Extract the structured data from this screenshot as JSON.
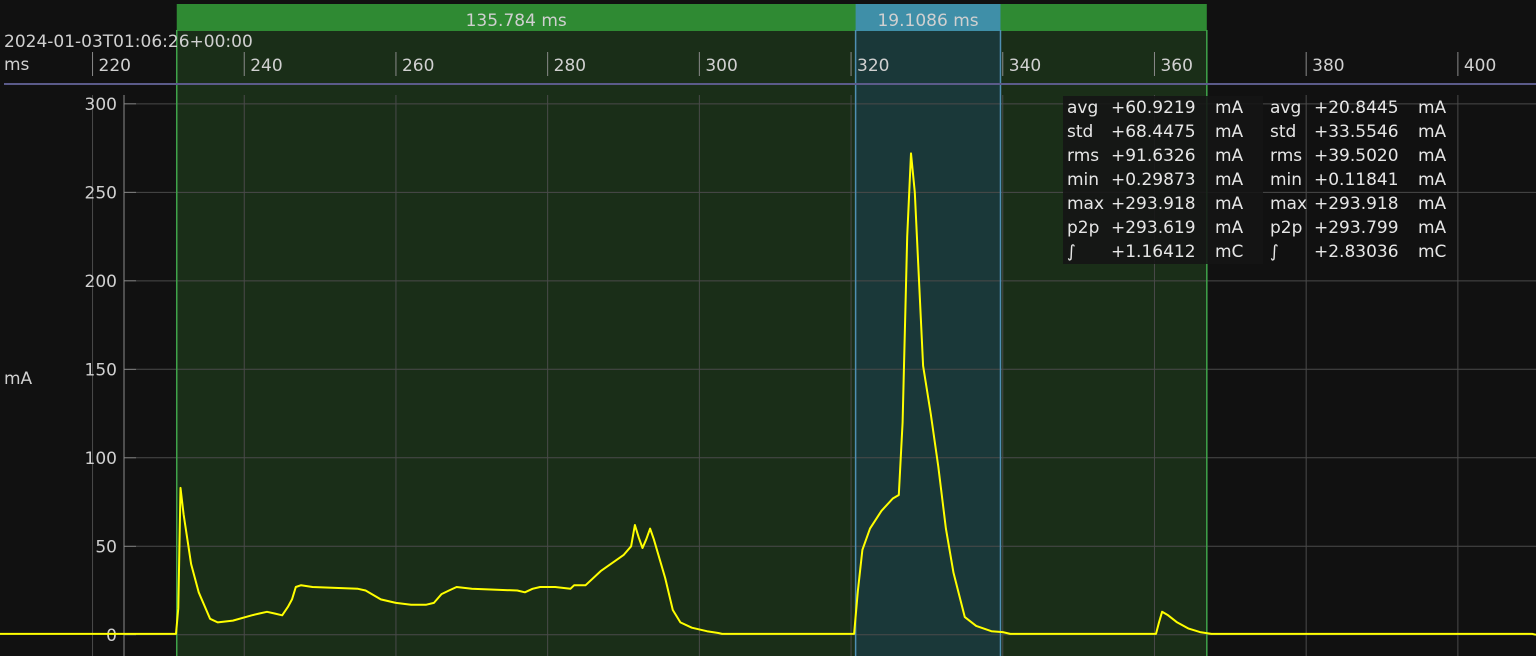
{
  "header": {
    "timestamp": "2024-01-03T01:06:26+00:00",
    "x_unit_label": "ms",
    "y_unit_label": "mA"
  },
  "colors": {
    "background": "#111111",
    "trace": "#ffff00",
    "dual_marker": "#3fa34a",
    "single_marker": "#4f8fb3",
    "grid": "#4a4a4a"
  },
  "markers": {
    "dual": {
      "t1": 231.1,
      "t2": 366.9,
      "label": "135.784 ms"
    },
    "single_window": {
      "t1": 320.6,
      "t2": 339.7,
      "label": "19.1086 ms"
    }
  },
  "stats": {
    "dual": [
      {
        "name": "avg",
        "value": "+60.9219",
        "unit": "mA"
      },
      {
        "name": "std",
        "value": "+68.4475",
        "unit": "mA"
      },
      {
        "name": "rms",
        "value": "+91.6326",
        "unit": "mA"
      },
      {
        "name": "min",
        "value": "+0.29873",
        "unit": "mA"
      },
      {
        "name": "max",
        "value": "+293.918",
        "unit": "mA"
      },
      {
        "name": "p2p",
        "value": "+293.619",
        "unit": "mA"
      },
      {
        "name": "∫",
        "value": "+1.16412",
        "unit": "mC"
      }
    ],
    "single": [
      {
        "name": "avg",
        "value": "+20.8445",
        "unit": "mA"
      },
      {
        "name": "std",
        "value": "+33.5546",
        "unit": "mA"
      },
      {
        "name": "rms",
        "value": "+39.5020",
        "unit": "mA"
      },
      {
        "name": "min",
        "value": "+0.11841",
        "unit": "mA"
      },
      {
        "name": "max",
        "value": "+293.918",
        "unit": "mA"
      },
      {
        "name": "p2p",
        "value": "+293.799",
        "unit": "mA"
      },
      {
        "name": "∫",
        "value": "+2.83036",
        "unit": "mC"
      }
    ]
  },
  "chart_data": {
    "type": "line",
    "title": "",
    "xlabel": "ms",
    "ylabel": "mA",
    "xlim": [
      207.8,
      410.3
    ],
    "ylim": [
      -12,
      305
    ],
    "x_ticks": [
      220,
      240,
      260,
      280,
      300,
      320,
      340,
      360,
      380,
      400
    ],
    "y_ticks": [
      0,
      50,
      100,
      150,
      200,
      250,
      300
    ],
    "grid": true,
    "series": [
      {
        "name": "",
        "points": [
          [
            207.8,
            0.5
          ],
          [
            231.0,
            0.5
          ],
          [
            231.3,
            15
          ],
          [
            231.6,
            83
          ],
          [
            232.0,
            68
          ],
          [
            233.0,
            40
          ],
          [
            234.0,
            24
          ],
          [
            235.0,
            14
          ],
          [
            235.5,
            9
          ],
          [
            236.5,
            7
          ],
          [
            238.5,
            8
          ],
          [
            241.0,
            11
          ],
          [
            242.0,
            12
          ],
          [
            243.0,
            13
          ],
          [
            244.0,
            12
          ],
          [
            245.0,
            11
          ],
          [
            245.8,
            16
          ],
          [
            246.3,
            20
          ],
          [
            246.8,
            27
          ],
          [
            247.5,
            28
          ],
          [
            249.0,
            27
          ],
          [
            255.0,
            26
          ],
          [
            256.0,
            25
          ],
          [
            258.0,
            20
          ],
          [
            260.0,
            18
          ],
          [
            262.0,
            17
          ],
          [
            264.0,
            17
          ],
          [
            265.0,
            18
          ],
          [
            266.0,
            23
          ],
          [
            267.0,
            25
          ],
          [
            268.0,
            27
          ],
          [
            270.0,
            26
          ],
          [
            276.0,
            25
          ],
          [
            277.0,
            24
          ],
          [
            278.0,
            26
          ],
          [
            279.0,
            27
          ],
          [
            281.0,
            27
          ],
          [
            283.0,
            26
          ],
          [
            283.5,
            28
          ],
          [
            285.0,
            28
          ],
          [
            287.0,
            36
          ],
          [
            290.0,
            45
          ],
          [
            291.0,
            50
          ],
          [
            291.5,
            62
          ],
          [
            292.0,
            55
          ],
          [
            292.5,
            49
          ],
          [
            293.0,
            54
          ],
          [
            293.5,
            60
          ],
          [
            294.0,
            54
          ],
          [
            295.5,
            32
          ],
          [
            296.5,
            14
          ],
          [
            297.5,
            7
          ],
          [
            299.0,
            4
          ],
          [
            301.0,
            2
          ],
          [
            302.5,
            1
          ],
          [
            303.0,
            0.5
          ],
          [
            320.4,
            0.5
          ],
          [
            320.9,
            25
          ],
          [
            321.5,
            48
          ],
          [
            322.5,
            60
          ],
          [
            324.0,
            70
          ],
          [
            325.5,
            77
          ],
          [
            326.3,
            79
          ],
          [
            326.8,
            120
          ],
          [
            327.4,
            225
          ],
          [
            327.9,
            272
          ],
          [
            328.4,
            250
          ],
          [
            328.9,
            205
          ],
          [
            329.5,
            152
          ],
          [
            330.5,
            125
          ],
          [
            331.5,
            95
          ],
          [
            332.5,
            60
          ],
          [
            333.5,
            35
          ],
          [
            335.0,
            10
          ],
          [
            336.5,
            5
          ],
          [
            338.5,
            2
          ],
          [
            340.0,
            1.5
          ],
          [
            341.0,
            0.5
          ],
          [
            360.2,
            0.5
          ],
          [
            360.6,
            7
          ],
          [
            361.0,
            13
          ],
          [
            361.8,
            11
          ],
          [
            363.0,
            7
          ],
          [
            364.5,
            3.5
          ],
          [
            366.0,
            1.5
          ],
          [
            367.5,
            0.5
          ],
          [
            409.8,
            0.5
          ],
          [
            410.3,
            0
          ]
        ]
      }
    ]
  }
}
